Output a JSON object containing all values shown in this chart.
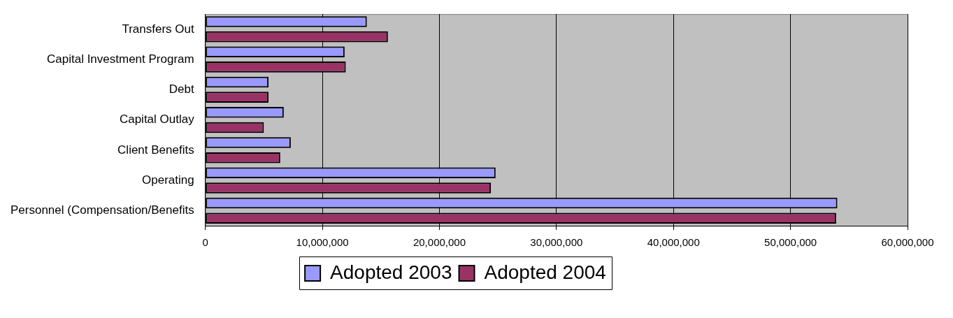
{
  "chart_data": {
    "type": "bar",
    "orientation": "horizontal",
    "categories": [
      "Transfers Out",
      "Capital Investment Program",
      "Debt",
      "Capital Outlay",
      "Client Benefits",
      "Operating",
      "Personnel (Compensation/Benefits"
    ],
    "series": [
      {
        "name": "Adopted 2003",
        "color": "#9999ff",
        "values": [
          13800000,
          11900000,
          5400000,
          6700000,
          7300000,
          24800000,
          54000000
        ]
      },
      {
        "name": "Adopted 2004",
        "color": "#993366",
        "values": [
          15600000,
          12000000,
          5400000,
          5000000,
          6400000,
          24400000,
          53900000
        ]
      }
    ],
    "xlim": [
      0,
      60000000
    ],
    "xticks": [
      0,
      {
        "value": 10000000,
        "label": "10,000,000"
      },
      {
        "value": 20000000,
        "label": "20,000,000"
      },
      {
        "value": 30000000,
        "label": "30,000,000"
      },
      {
        "value": 40000000,
        "label": "40,000,000"
      },
      {
        "value": 50000000,
        "label": "50,000,000"
      },
      {
        "value": 60000000,
        "label": "60,000,000"
      }
    ],
    "grid": "x",
    "legend": "bottom"
  }
}
